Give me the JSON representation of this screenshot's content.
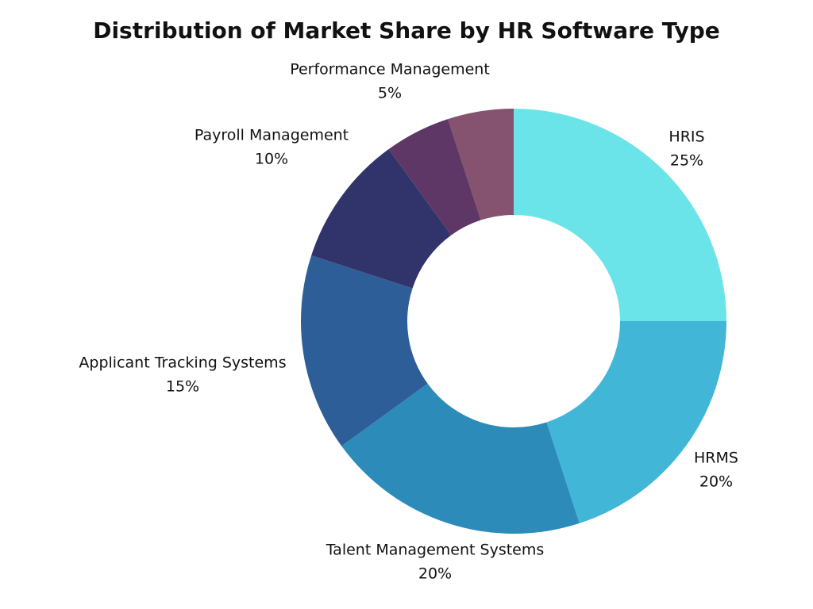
{
  "chart_data": {
    "type": "donut",
    "title": "Distribution of Market Share by HR Software Type",
    "categories": [
      "HRIS",
      "HRMS",
      "Talent Management Systems",
      "Applicant Tracking Systems",
      "Payroll Management",
      null,
      "Performance Management"
    ],
    "values": [
      25,
      20,
      20,
      15,
      10,
      5,
      5
    ],
    "value_labels": [
      "25%",
      "20%",
      "20%",
      "15%",
      "10%",
      null,
      "5%"
    ],
    "colors": [
      "#6ae4e8",
      "#42b6d6",
      "#2d8bba",
      "#2e5e98",
      "#31336b",
      "#5e3766",
      "#85526f"
    ]
  }
}
